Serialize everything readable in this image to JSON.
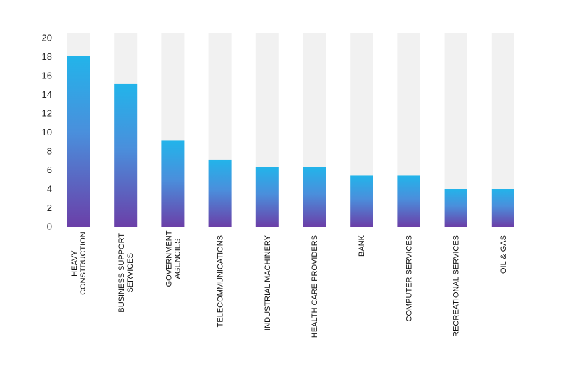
{
  "chart_data": {
    "type": "bar",
    "title": "",
    "xlabel": "",
    "ylabel": "",
    "ylim": [
      0,
      20
    ],
    "yticks": [
      0,
      2,
      4,
      6,
      8,
      10,
      12,
      14,
      16,
      18,
      20
    ],
    "grid": false,
    "categories": [
      [
        "HEAVY",
        "CONSTRUCTION"
      ],
      [
        "BUSINESS SUPPORT",
        "SERVICES"
      ],
      [
        "GOVERNMENT",
        "AGENCIES"
      ],
      [
        "TELECOMMUNICATIONS"
      ],
      [
        "INDUSTRIAL MACHINERY"
      ],
      [
        "HEALTH CARE PROVIDERS"
      ],
      [
        "BANK"
      ],
      [
        "COMPUTER SERVICES"
      ],
      [
        "RECREATIONAL SERVICES"
      ],
      [
        "OIL & GAS"
      ]
    ],
    "values": [
      18.1,
      15.1,
      9.1,
      7.1,
      6.3,
      6.3,
      5.4,
      5.4,
      4.0,
      4.0
    ],
    "colors": {
      "bar_top": "#22b4ea",
      "bar_bottom": "#6b3fa8",
      "background_bar": "#f1f1f1"
    }
  }
}
